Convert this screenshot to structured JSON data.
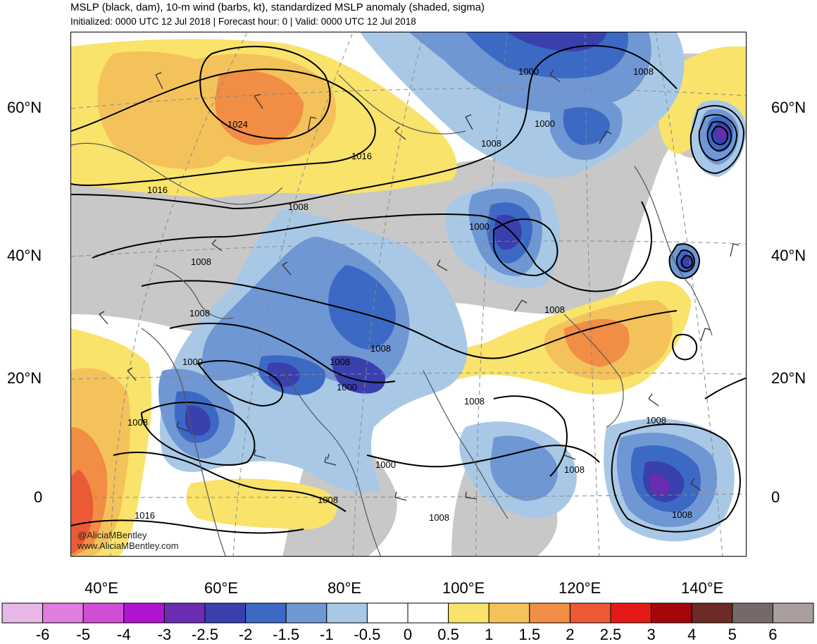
{
  "title": "MSLP (black, dam), 10-m wind (barbs, kt), standardized MSLP anomaly (shaded, sigma)",
  "subtitle": "Initialized: 0000 UTC 12 Jul 2018 | Forecast hour: 0 | Valid: 0000 UTC 12 Jul 2018",
  "credit": [
    "@AliciaMBentley",
    "www.AliciaMBentley.com"
  ],
  "lat_labels": [
    "60°N",
    "40°N",
    "20°N",
    "0"
  ],
  "lon_labels": [
    "40°E",
    "60°E",
    "80°E",
    "100°E",
    "120°E",
    "140°E"
  ],
  "contour_labels": [
    "1024",
    "1016",
    "1016",
    "1008",
    "1008",
    "1008",
    "1000",
    "1008",
    "1000",
    "1000",
    "1008",
    "1000",
    "1008",
    "1008",
    "1000",
    "1008",
    "1008",
    "1000",
    "1008",
    "1008",
    "1016",
    "1008",
    "1008",
    "1008",
    "1008",
    "1008"
  ],
  "colorbar": {
    "labels": [
      "-6",
      "-5",
      "-4",
      "-3",
      "-2.5",
      "-2",
      "-1.5",
      "-1",
      "-0.5",
      "0",
      "0.5",
      "1",
      "1.5",
      "2",
      "2.5",
      "3",
      "4",
      "5",
      "6"
    ],
    "colors": [
      "#e8b7e8",
      "#e07ee0",
      "#d04ed6",
      "#b014d0",
      "#6a2cb0",
      "#3a3fae",
      "#3c69c4",
      "#6f97d3",
      "#a8c8e6",
      "#ffffff",
      "#ffffff",
      "#f9e36a",
      "#f4c25a",
      "#f18d44",
      "#ec5a35",
      "#e51a17",
      "#a5060b",
      "#6e2a26",
      "#766a68",
      "#aa9e9e"
    ]
  }
}
